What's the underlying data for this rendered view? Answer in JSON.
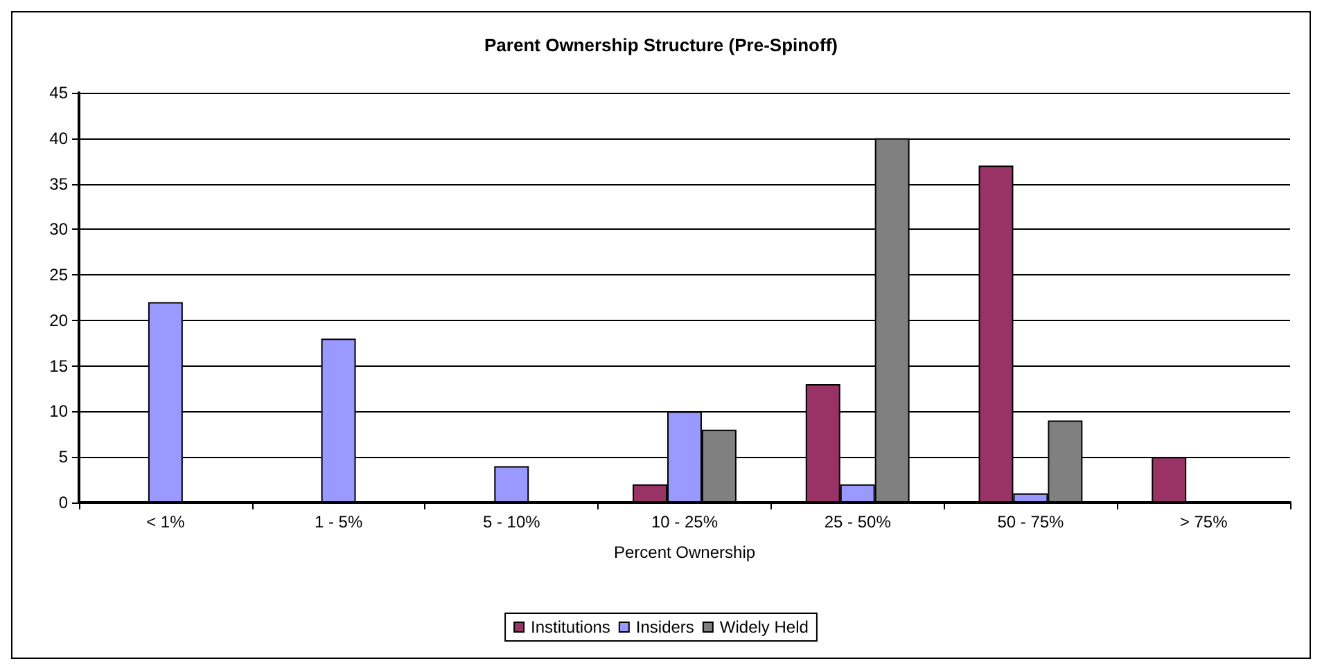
{
  "chart_data": {
    "type": "bar",
    "title": "Parent Ownership Structure (Pre-Spinoff)",
    "xlabel": "Percent Ownership",
    "categories": [
      "< 1%",
      "1 - 5%",
      "5 - 10%",
      "10 - 25%",
      "25 - 50%",
      "50 - 75%",
      "> 75%"
    ],
    "series": [
      {
        "name": "Institutions",
        "color": "#993366",
        "values": [
          0,
          0,
          0,
          2,
          13,
          37,
          5
        ]
      },
      {
        "name": "Insiders",
        "color": "#9999ff",
        "values": [
          22,
          18,
          4,
          10,
          2,
          1,
          0
        ]
      },
      {
        "name": "Widely Held",
        "color": "#808080",
        "values": [
          0,
          0,
          0,
          8,
          40,
          9,
          0
        ]
      }
    ],
    "ylim": [
      0,
      45
    ],
    "yticks": [
      0,
      5,
      10,
      15,
      20,
      25,
      30,
      35,
      40,
      45
    ],
    "grid": "y",
    "legend": "bottom"
  }
}
